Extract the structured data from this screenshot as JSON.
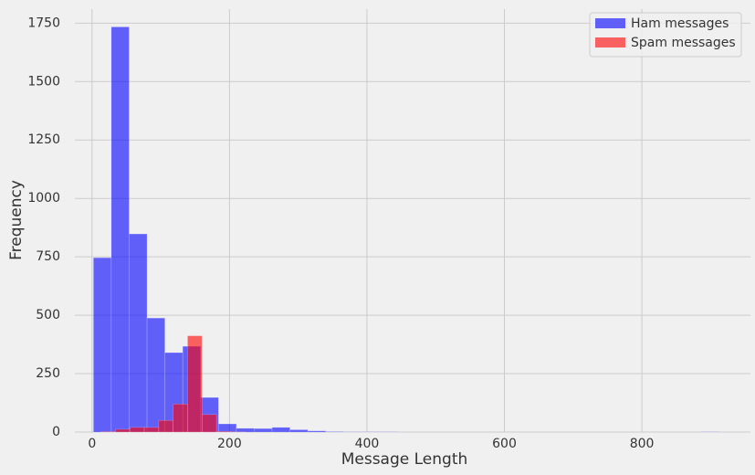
{
  "chart_data": {
    "type": "histogram",
    "xlabel": "Message Length",
    "ylabel": "Frequency",
    "xlim": [
      -25,
      958
    ],
    "ylim": [
      0,
      1810
    ],
    "xticks": [
      0,
      200,
      400,
      600,
      800
    ],
    "yticks": [
      0,
      250,
      500,
      750,
      1000,
      1250,
      1500,
      1750
    ],
    "grid": true,
    "legend": "upper right",
    "opacity": 0.6,
    "series": [
      {
        "name": "Ham messages",
        "color": "#0000ff",
        "bins": [
          2,
          28,
          54,
          80,
          106,
          132,
          158,
          184,
          210,
          236,
          262,
          288,
          314,
          340,
          366,
          392,
          418,
          444,
          470,
          496,
          522,
          548,
          574,
          600,
          626,
          652,
          678,
          704,
          730,
          756,
          782,
          808,
          834,
          860,
          886,
          912
        ],
        "values": [
          746,
          1734,
          848,
          488,
          340,
          367,
          148,
          35,
          16,
          15,
          20,
          10,
          5,
          2,
          1,
          1,
          1,
          0,
          0,
          0,
          0,
          0,
          0,
          0,
          0,
          0,
          0,
          0,
          0,
          0,
          0,
          0,
          0,
          0,
          1
        ]
      },
      {
        "name": "Spam messages",
        "color": "#ff0000",
        "bins": [
          13,
          34,
          55,
          76,
          97,
          118,
          139,
          160,
          181,
          202,
          223
        ],
        "values": [
          2,
          12,
          20,
          20,
          50,
          120,
          412,
          75,
          3,
          1
        ]
      }
    ]
  }
}
